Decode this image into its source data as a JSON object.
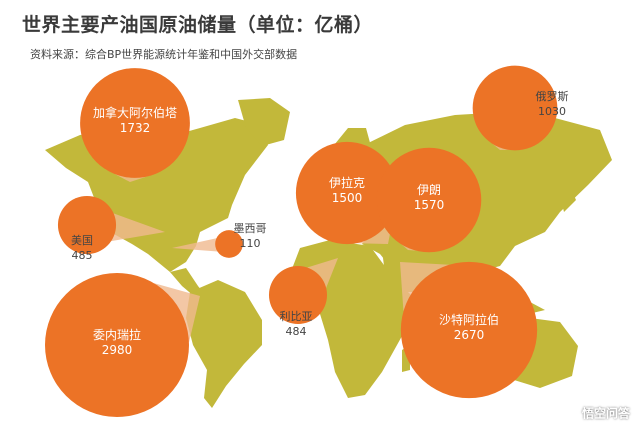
{
  "title": "世界主要产油国原油储量（单位：亿桶）",
  "subtitle": "资料来源：综合BP世界能源统计年鉴和中国外交部数据",
  "watermark": "悟空问答",
  "colors": {
    "land": "#c2b83a",
    "bubble": "#ec7326",
    "beam": "#f0b98f",
    "label_dark": "#444444",
    "label_light": "#ffffff"
  },
  "chart_data": {
    "type": "bubble-map",
    "title": "世界主要产油国原油储量（单位：亿桶）",
    "unit": "亿桶",
    "legend": "none",
    "grid": false,
    "series": [
      {
        "country": "加拿大阿尔伯塔",
        "value": 1732
      },
      {
        "country": "美国",
        "value": 485
      },
      {
        "country": "墨西哥",
        "value": 110
      },
      {
        "country": "委内瑞拉",
        "value": 2980
      },
      {
        "country": "利比亚",
        "value": 484
      },
      {
        "country": "伊拉克",
        "value": 1500
      },
      {
        "country": "伊朗",
        "value": 1570
      },
      {
        "country": "沙特阿拉伯",
        "value": 2670
      },
      {
        "country": "俄罗斯",
        "value": 1030
      }
    ]
  }
}
